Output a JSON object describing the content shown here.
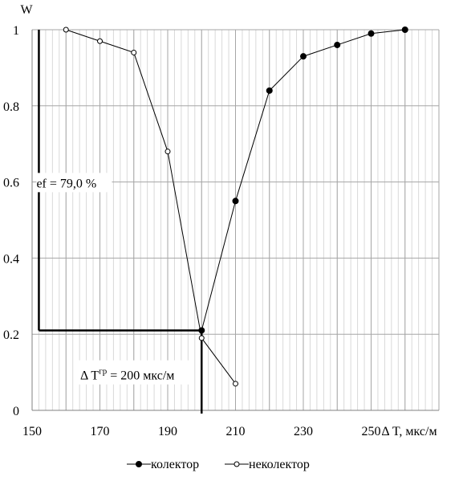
{
  "chart_data": {
    "type": "line",
    "ylabel": "W",
    "xlabel": "Δ T, мкс/м",
    "xlim": [
      150,
      270
    ],
    "ylim": [
      0,
      1
    ],
    "x_ticks": [
      150,
      170,
      190,
      210,
      230,
      250
    ],
    "x_tick_labels": [
      "150",
      "170",
      "190",
      "210",
      "230",
      "250"
    ],
    "y_ticks": [
      0,
      0.2,
      0.4,
      0.6,
      0.8,
      1
    ],
    "y_tick_labels": [
      "0",
      "0.2",
      "0.4",
      "0.6",
      "0.8",
      "1"
    ],
    "grid": true,
    "legend_position": "bottom",
    "series": [
      {
        "name": "колектор",
        "marker": "filled-circle",
        "x": [
          200,
          210,
          220,
          230,
          240,
          250,
          260
        ],
        "y": [
          0.21,
          0.55,
          0.84,
          0.93,
          0.96,
          0.99,
          1.0
        ]
      },
      {
        "name": "неколектор",
        "marker": "open-circle",
        "x": [
          160,
          170,
          180,
          190,
          200,
          210
        ],
        "y": [
          1.0,
          0.97,
          0.94,
          0.68,
          0.19,
          0.07
        ]
      }
    ],
    "annotations": {
      "efficiency_label": "ef = 79,0 %",
      "efficiency_value": 0.79,
      "efficiency_marker_x": 152,
      "threshold_x": 200,
      "threshold_y": 0.21,
      "threshold_label_prefix": "Δ T",
      "threshold_label_sup": "гр",
      "threshold_label_suffix": " = 200 мкс/м"
    }
  },
  "colors": {
    "line": "#000000",
    "grid": "#a6a6a6",
    "minor_grid": "#d9d9d9",
    "background": "#ffffff"
  }
}
